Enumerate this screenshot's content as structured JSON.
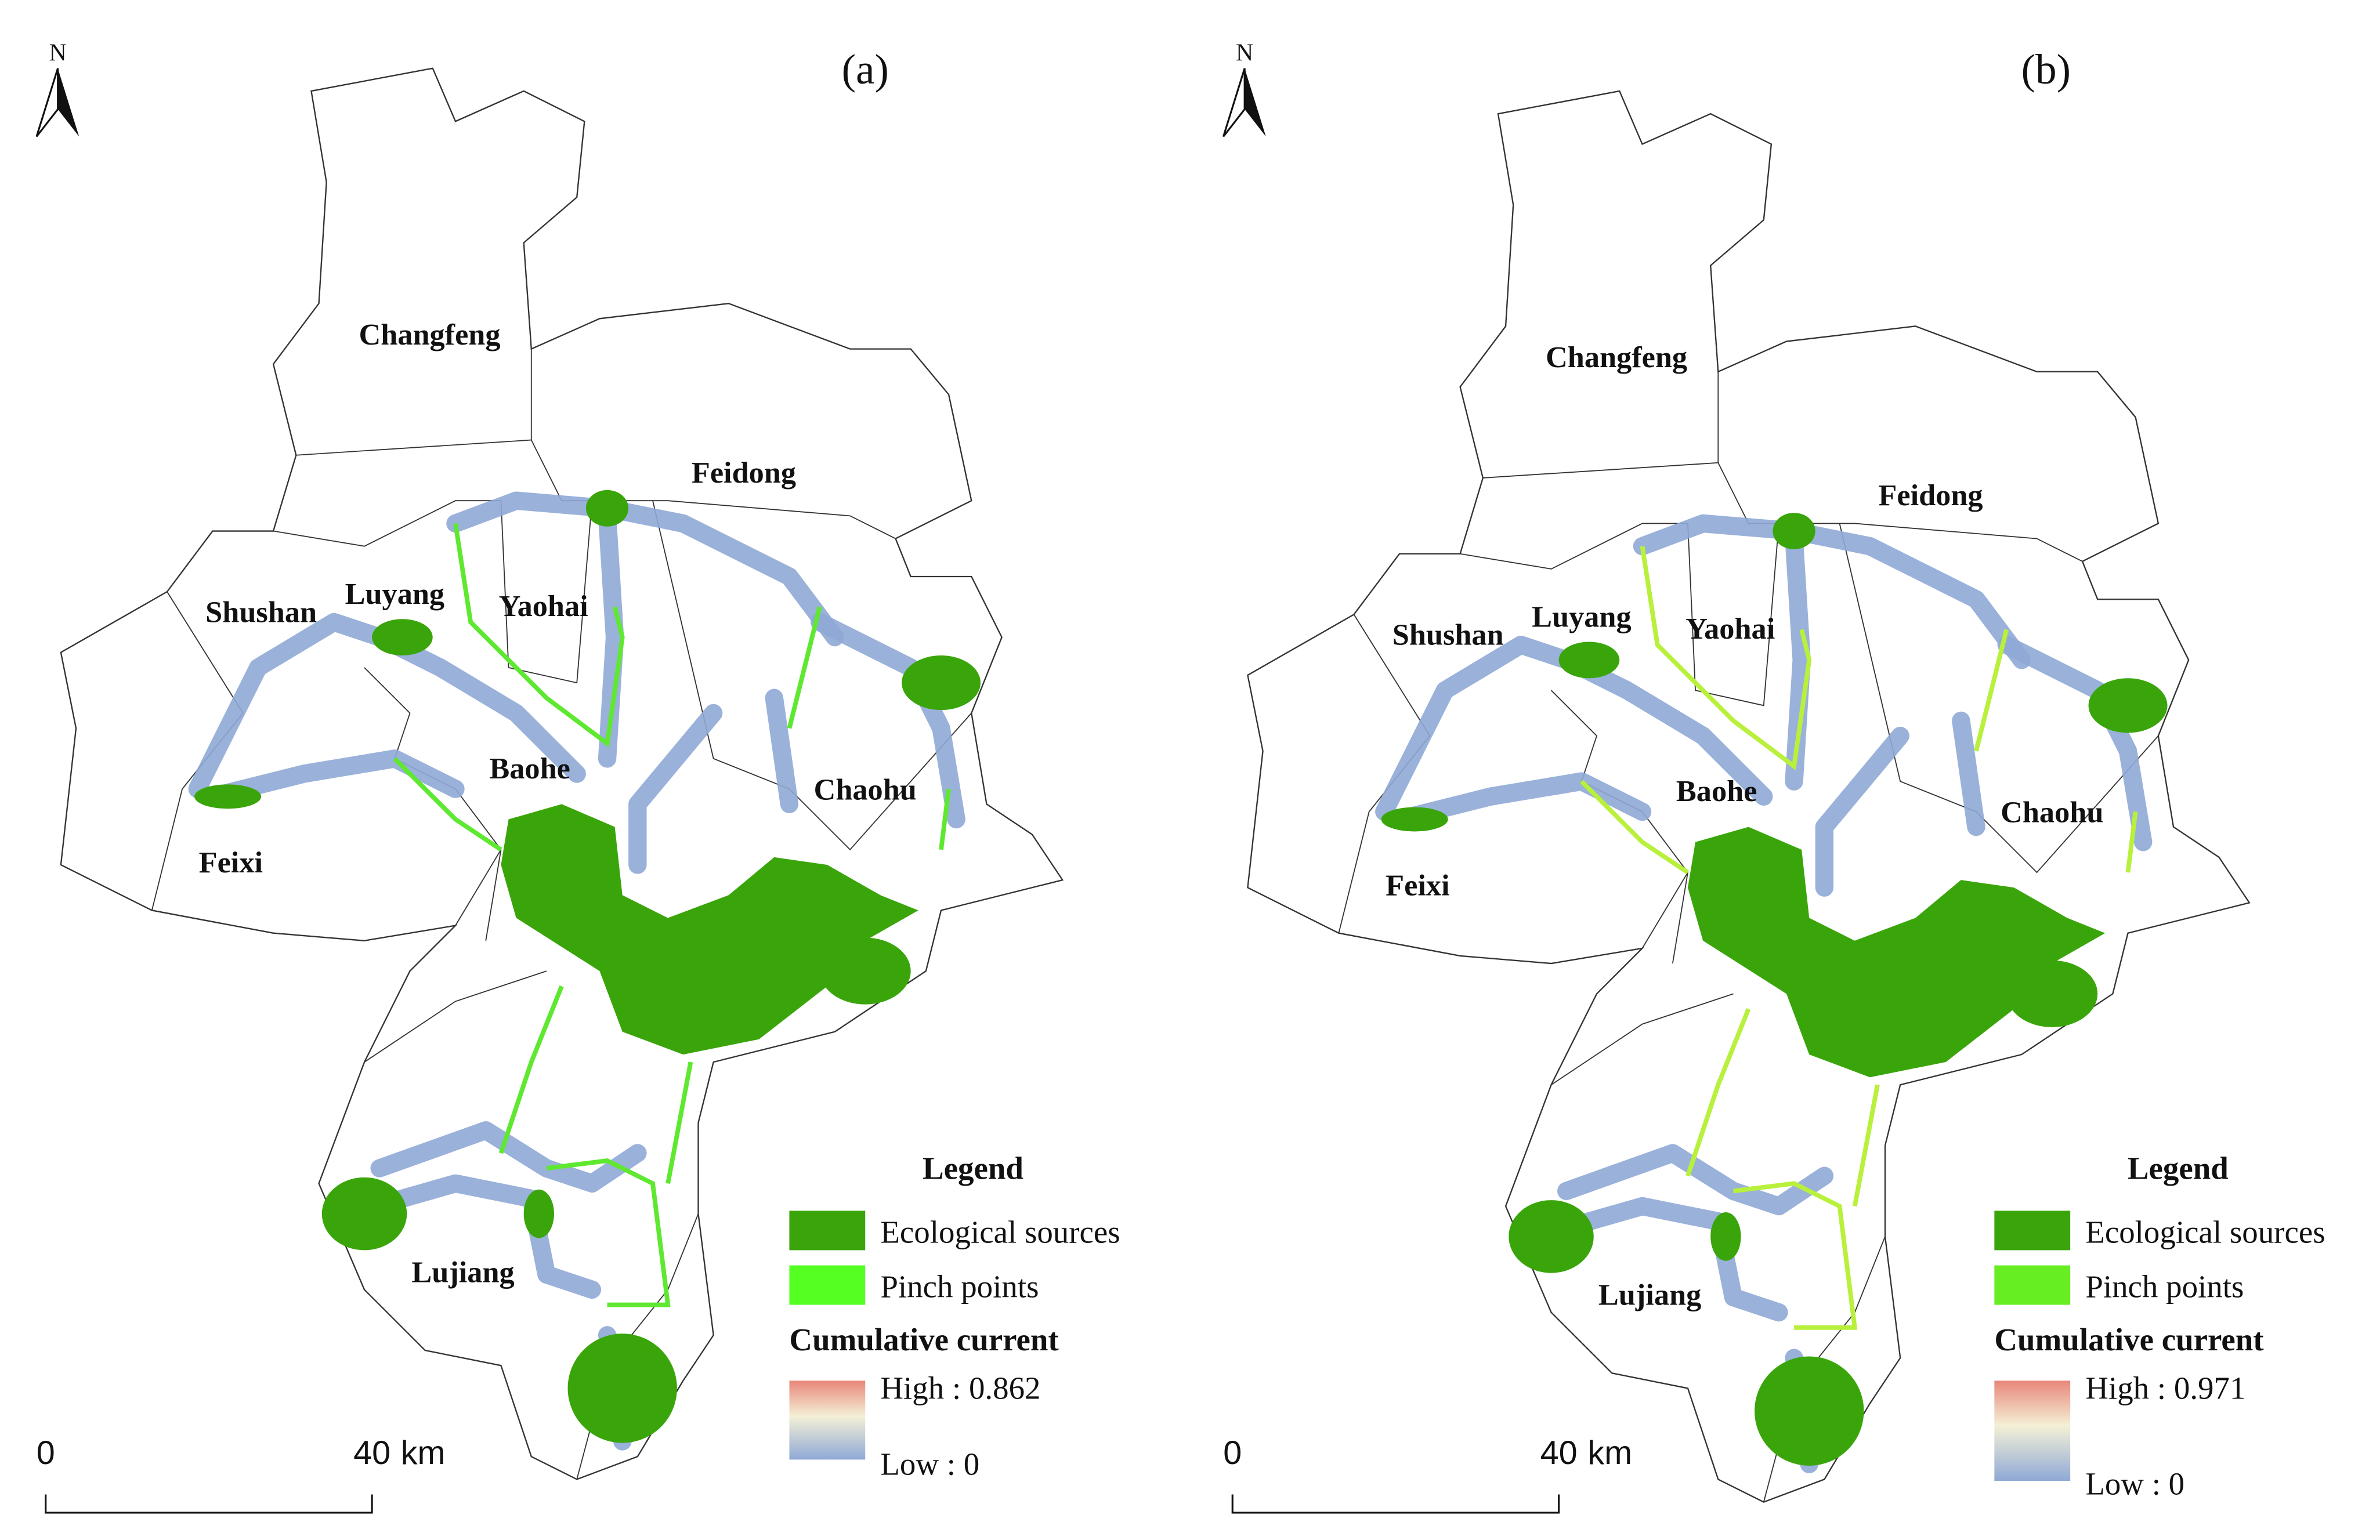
{
  "panels": [
    {
      "label": "(a)",
      "north": "N",
      "districts": [
        "Changfeng",
        "Feidong",
        "Shushan",
        "Luyang",
        "Yaohai",
        "Baohe",
        "Chaohu",
        "Feixi",
        "Lujiang"
      ],
      "legend": {
        "title": "Legend",
        "items": [
          "Ecological sources",
          "Pinch points"
        ],
        "current_title": "Cumulative current",
        "high": "High : 0.862",
        "low": "Low : 0"
      },
      "scale": {
        "start": "0",
        "end": "40",
        "unit": "km"
      }
    },
    {
      "label": "(b)",
      "north": "N",
      "districts": [
        "Changfeng",
        "Feidong",
        "Shushan",
        "Luyang",
        "Yaohai",
        "Baohe",
        "Chaohu",
        "Feixi",
        "Lujiang"
      ],
      "legend": {
        "title": "Legend",
        "items": [
          "Ecological sources",
          "Pinch points"
        ],
        "current_title": "Cumulative current",
        "high": "High : 0.971",
        "low": "Low : 0"
      },
      "scale": {
        "start": "0",
        "end": "40",
        "unit": "km"
      }
    }
  ]
}
